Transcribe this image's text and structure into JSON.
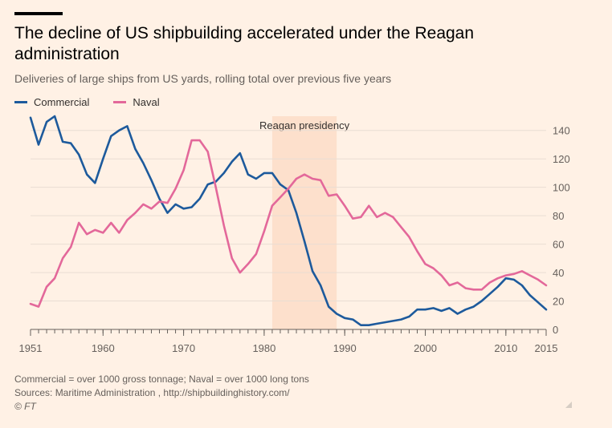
{
  "header": {
    "title": "The decline of US shipbuilding accelerated under the Reagan administration",
    "subtitle": "Deliveries of large ships from US yards, rolling total over previous five years"
  },
  "legend": [
    {
      "label": "Commercial",
      "color": "#1d5a9c"
    },
    {
      "label": "Naval",
      "color": "#e3689a"
    }
  ],
  "footer": {
    "note": "Commercial = over 1000 gross tonnage; Naval = over 1000 long tons",
    "sources": "Sources: Maritime Administration , http://shipbuildinghistory.com/",
    "copyright": "© FT"
  },
  "chart_data": {
    "type": "line",
    "xlim": [
      1951,
      2015
    ],
    "ylim": [
      0,
      150
    ],
    "x_ticks": [
      1951,
      1960,
      1970,
      1980,
      1990,
      2000,
      2010,
      2015
    ],
    "y_ticks": [
      0,
      20,
      40,
      60,
      80,
      100,
      120,
      140
    ],
    "shaded_region": {
      "label": "Reagan presidency",
      "from": 1981,
      "to": 1989,
      "color": "#fde0cc"
    },
    "series": [
      {
        "name": "Commercial",
        "color": "#1d5a9c",
        "points": [
          [
            1951,
            149
          ],
          [
            1952,
            130
          ],
          [
            1953,
            146
          ],
          [
            1954,
            150
          ],
          [
            1955,
            132
          ],
          [
            1956,
            131
          ],
          [
            1957,
            123
          ],
          [
            1958,
            109
          ],
          [
            1959,
            103
          ],
          [
            1960,
            120
          ],
          [
            1961,
            136
          ],
          [
            1962,
            140
          ],
          [
            1963,
            143
          ],
          [
            1964,
            127
          ],
          [
            1965,
            117
          ],
          [
            1966,
            105
          ],
          [
            1967,
            92
          ],
          [
            1968,
            82
          ],
          [
            1969,
            88
          ],
          [
            1970,
            85
          ],
          [
            1971,
            86
          ],
          [
            1972,
            92
          ],
          [
            1973,
            102
          ],
          [
            1974,
            104
          ],
          [
            1975,
            110
          ],
          [
            1976,
            118
          ],
          [
            1977,
            124
          ],
          [
            1978,
            109
          ],
          [
            1979,
            106
          ],
          [
            1980,
            110
          ],
          [
            1981,
            110
          ],
          [
            1982,
            102
          ],
          [
            1983,
            98
          ],
          [
            1984,
            82
          ],
          [
            1985,
            62
          ],
          [
            1986,
            41
          ],
          [
            1987,
            31
          ],
          [
            1988,
            16
          ],
          [
            1989,
            11
          ],
          [
            1990,
            8
          ],
          [
            1991,
            7
          ],
          [
            1992,
            3
          ],
          [
            1993,
            3
          ],
          [
            1994,
            4
          ],
          [
            1995,
            5
          ],
          [
            1996,
            6
          ],
          [
            1997,
            7
          ],
          [
            1998,
            9
          ],
          [
            1999,
            14
          ],
          [
            2000,
            14
          ],
          [
            2001,
            15
          ],
          [
            2002,
            13
          ],
          [
            2003,
            15
          ],
          [
            2004,
            11
          ],
          [
            2005,
            14
          ],
          [
            2006,
            16
          ],
          [
            2007,
            20
          ],
          [
            2008,
            25
          ],
          [
            2009,
            30
          ],
          [
            2010,
            36
          ],
          [
            2011,
            35
          ],
          [
            2012,
            31
          ],
          [
            2013,
            24
          ],
          [
            2014,
            19
          ],
          [
            2015,
            14
          ]
        ]
      },
      {
        "name": "Naval",
        "color": "#e3689a",
        "points": [
          [
            1951,
            18
          ],
          [
            1952,
            16
          ],
          [
            1953,
            30
          ],
          [
            1954,
            36
          ],
          [
            1955,
            50
          ],
          [
            1956,
            58
          ],
          [
            1957,
            75
          ],
          [
            1958,
            67
          ],
          [
            1959,
            70
          ],
          [
            1960,
            68
          ],
          [
            1961,
            75
          ],
          [
            1962,
            68
          ],
          [
            1963,
            77
          ],
          [
            1964,
            82
          ],
          [
            1965,
            88
          ],
          [
            1966,
            85
          ],
          [
            1967,
            90
          ],
          [
            1968,
            89
          ],
          [
            1969,
            99
          ],
          [
            1970,
            112
          ],
          [
            1971,
            133
          ],
          [
            1972,
            133
          ],
          [
            1973,
            125
          ],
          [
            1974,
            100
          ],
          [
            1975,
            73
          ],
          [
            1976,
            50
          ],
          [
            1977,
            40
          ],
          [
            1978,
            46
          ],
          [
            1979,
            53
          ],
          [
            1980,
            69
          ],
          [
            1981,
            87
          ],
          [
            1982,
            93
          ],
          [
            1983,
            99
          ],
          [
            1984,
            106
          ],
          [
            1985,
            109
          ],
          [
            1986,
            106
          ],
          [
            1987,
            105
          ],
          [
            1988,
            94
          ],
          [
            1989,
            95
          ],
          [
            1990,
            87
          ],
          [
            1991,
            78
          ],
          [
            1992,
            79
          ],
          [
            1993,
            87
          ],
          [
            1994,
            79
          ],
          [
            1995,
            82
          ],
          [
            1996,
            79
          ],
          [
            1997,
            72
          ],
          [
            1998,
            65
          ],
          [
            1999,
            55
          ],
          [
            2000,
            46
          ],
          [
            2001,
            43
          ],
          [
            2002,
            38
          ],
          [
            2003,
            31
          ],
          [
            2004,
            33
          ],
          [
            2005,
            29
          ],
          [
            2006,
            28
          ],
          [
            2007,
            28
          ],
          [
            2008,
            33
          ],
          [
            2009,
            36
          ],
          [
            2010,
            38
          ],
          [
            2011,
            39
          ],
          [
            2012,
            41
          ],
          [
            2013,
            38
          ],
          [
            2014,
            35
          ],
          [
            2015,
            31
          ]
        ]
      }
    ]
  }
}
